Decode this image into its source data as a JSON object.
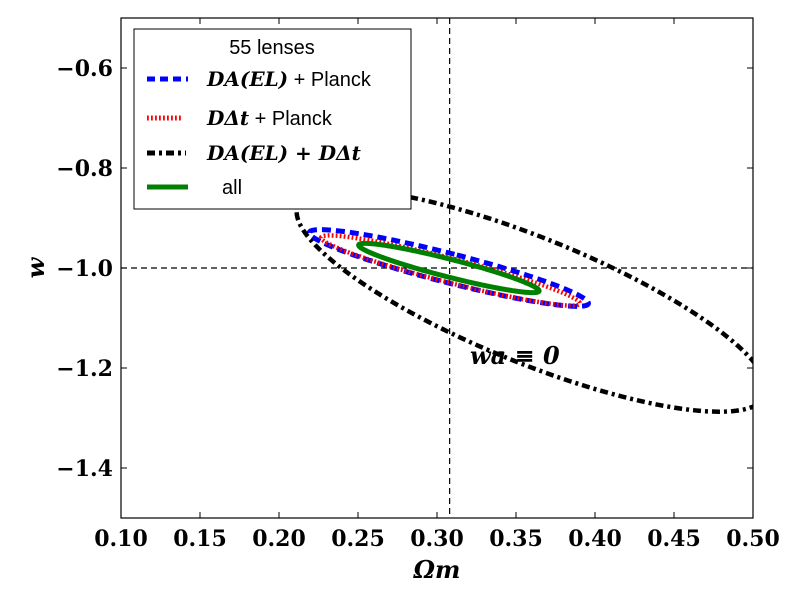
{
  "chart_data": {
    "type": "line",
    "xlabel": "Ωm",
    "ylabel": "w",
    "xlim": [
      0.1,
      0.5
    ],
    "ylim": [
      -1.5,
      -0.5
    ],
    "xticks": [
      "0.10",
      "0.15",
      "0.20",
      "0.25",
      "0.30",
      "0.35",
      "0.40",
      "0.45",
      "0.50"
    ],
    "yticks": [
      "−0.6",
      "−0.8",
      "−1.0",
      "−1.2",
      "−1.4"
    ],
    "xtick_values": [
      0.1,
      0.15,
      0.2,
      0.25,
      0.3,
      0.35,
      0.4,
      0.45,
      0.5
    ],
    "ytick_values": [
      -0.6,
      -0.8,
      -1.0,
      -1.2,
      -1.4
    ],
    "reference_lines": {
      "x": 0.308,
      "y": -1.0
    },
    "legend": {
      "title": "55 lenses",
      "entries": [
        {
          "key": "dael",
          "math": "DA(EL)",
          "text": " + Planck"
        },
        {
          "key": "ddt",
          "math": "DΔt",
          "text": " + Planck"
        },
        {
          "key": "comb",
          "math": "DA(EL) + DΔt",
          "text": ""
        },
        {
          "key": "all",
          "math": "",
          "text": "all"
        }
      ]
    },
    "annotation": "wa ≡ 0",
    "series": [
      {
        "name": "DA(EL) + Planck",
        "color": "#0000ff",
        "style": "dashed",
        "ellipse": {
          "cx": 0.3075,
          "cy": -1.0,
          "rx": 0.0115,
          "ry": 0.232,
          "rotation_deg": 72
        }
      },
      {
        "name": "DΔt + Planck",
        "color": "#ff0000",
        "style": "dotted",
        "ellipse": {
          "cx": 0.3085,
          "cy": -1.005,
          "rx": 0.0095,
          "ry": 0.215,
          "rotation_deg": 72
        }
      },
      {
        "name": "DA(EL) + DΔt",
        "color": "#000000",
        "style": "dashdot",
        "ellipse": {
          "cx": 0.36,
          "cy": -1.065,
          "rx": 0.1666,
          "ry": 0.12,
          "rotation_deg": -28
        }
      },
      {
        "name": "all",
        "color": "#008000",
        "style": "solid",
        "ellipse": {
          "cx": 0.3075,
          "cy": -1.0,
          "rx": 0.007,
          "ry": 0.15,
          "rotation_deg": 72
        }
      }
    ]
  }
}
